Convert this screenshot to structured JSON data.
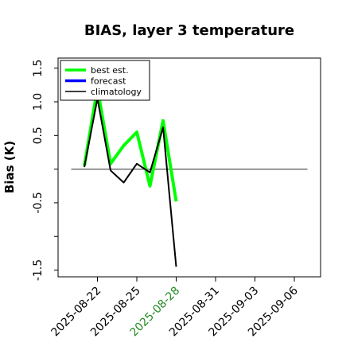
{
  "chart_data": {
    "type": "line",
    "title": "BIAS, layer 3 temperature",
    "ylabel": "Bias (K)",
    "xlabel": "",
    "ylim": [
      -1.6,
      1.65
    ],
    "xlim": [
      "2025-08-19",
      "2025-09-08"
    ],
    "yticks": [
      -1.5,
      -0.5,
      0.5,
      1.0,
      1.5
    ],
    "yticks_minor": [
      -1.0,
      0.0
    ],
    "xticks": [
      {
        "date": "2025-08-22",
        "label": "2025-08-22",
        "color": "#000000"
      },
      {
        "date": "2025-08-25",
        "label": "2025-08-25",
        "color": "#000000"
      },
      {
        "date": "2025-08-28",
        "label": "2025-08-28",
        "color": "#228B22"
      },
      {
        "date": "2025-08-31",
        "label": "2025-08-31",
        "color": "#000000"
      },
      {
        "date": "2025-09-03",
        "label": "2025-09-03",
        "color": "#000000"
      },
      {
        "date": "2025-09-06",
        "label": "2025-09-06",
        "color": "#000000"
      }
    ],
    "zero_line": {
      "y": 0,
      "from": "2025-08-20",
      "to": "2025-09-07",
      "color": "#555555"
    },
    "series": [
      {
        "name": "best est.",
        "color": "#00ff00",
        "dates": [
          "2025-08-21",
          "2025-08-22",
          "2025-08-23",
          "2025-08-24",
          "2025-08-25",
          "2025-08-26",
          "2025-08-27",
          "2025-08-28"
        ],
        "values": [
          0.05,
          1.2,
          0.08,
          0.35,
          0.55,
          -0.25,
          0.72,
          -0.48
        ]
      },
      {
        "name": "forecast",
        "color": "#0000ff",
        "dates": [],
        "values": []
      },
      {
        "name": "climatology",
        "color": "#000000",
        "dates": [
          "2025-08-21",
          "2025-08-22",
          "2025-08-23",
          "2025-08-24",
          "2025-08-25",
          "2025-08-26",
          "2025-08-27",
          "2025-08-28"
        ],
        "values": [
          0.03,
          1.05,
          -0.02,
          -0.2,
          0.08,
          -0.05,
          0.62,
          -1.45
        ]
      }
    ],
    "legend": {
      "position": "top-left"
    },
    "grid": false
  }
}
